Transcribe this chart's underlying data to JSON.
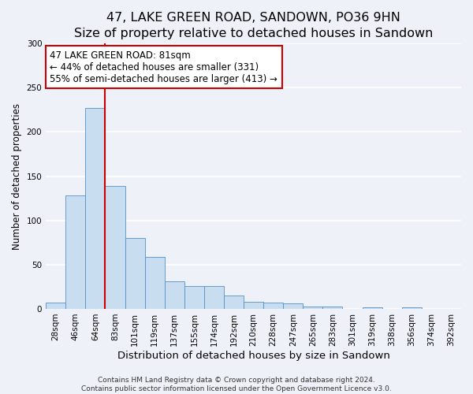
{
  "title": "47, LAKE GREEN ROAD, SANDOWN, PO36 9HN",
  "subtitle": "Size of property relative to detached houses in Sandown",
  "xlabel": "Distribution of detached houses by size in Sandown",
  "ylabel": "Number of detached properties",
  "bar_labels": [
    "28sqm",
    "46sqm",
    "64sqm",
    "83sqm",
    "101sqm",
    "119sqm",
    "137sqm",
    "155sqm",
    "174sqm",
    "192sqm",
    "210sqm",
    "228sqm",
    "247sqm",
    "265sqm",
    "283sqm",
    "301sqm",
    "319sqm",
    "338sqm",
    "356sqm",
    "374sqm",
    "392sqm"
  ],
  "bar_values": [
    7,
    128,
    227,
    139,
    80,
    59,
    31,
    26,
    26,
    15,
    8,
    7,
    6,
    3,
    3,
    0,
    2,
    0,
    2,
    0,
    0
  ],
  "bar_color": "#c9ddf0",
  "bar_edge_color": "#5590c8",
  "vline_color": "#cc0000",
  "annotation_text_line1": "47 LAKE GREEN ROAD: 81sqm",
  "annotation_text_line2": "← 44% of detached houses are smaller (331)",
  "annotation_text_line3": "55% of semi-detached houses are larger (413) →",
  "annotation_box_color": "#ffffff",
  "annotation_box_edge_color": "#cc0000",
  "ylim": [
    0,
    300
  ],
  "yticks": [
    0,
    50,
    100,
    150,
    200,
    250,
    300
  ],
  "footer_line1": "Contains HM Land Registry data © Crown copyright and database right 2024.",
  "footer_line2": "Contains public sector information licensed under the Open Government Licence v3.0.",
  "bg_color": "#eef2f8",
  "plot_bg_color": "#eef2f8",
  "grid_color": "#ffffff",
  "title_fontsize": 11.5,
  "xlabel_fontsize": 9.5,
  "ylabel_fontsize": 8.5,
  "tick_fontsize": 7.5,
  "annotation_fontsize": 8.5,
  "footer_fontsize": 6.5
}
